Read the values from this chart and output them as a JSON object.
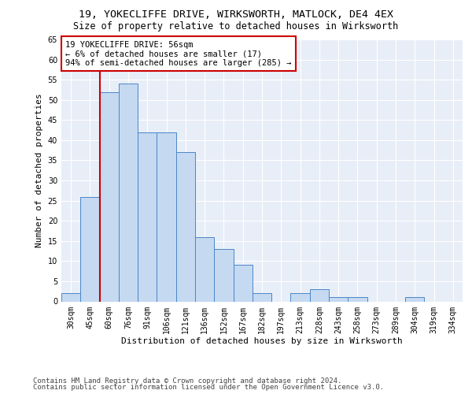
{
  "title_line1": "19, YOKECLIFFE DRIVE, WIRKSWORTH, MATLOCK, DE4 4EX",
  "title_line2": "Size of property relative to detached houses in Wirksworth",
  "xlabel": "Distribution of detached houses by size in Wirksworth",
  "ylabel": "Number of detached properties",
  "categories": [
    "30sqm",
    "45sqm",
    "60sqm",
    "76sqm",
    "91sqm",
    "106sqm",
    "121sqm",
    "136sqm",
    "152sqm",
    "167sqm",
    "182sqm",
    "197sqm",
    "213sqm",
    "228sqm",
    "243sqm",
    "258sqm",
    "273sqm",
    "289sqm",
    "304sqm",
    "319sqm",
    "334sqm"
  ],
  "values": [
    2,
    26,
    52,
    54,
    42,
    42,
    37,
    16,
    13,
    9,
    2,
    0,
    2,
    3,
    1,
    1,
    0,
    0,
    1,
    0,
    0
  ],
  "bar_color": "#c5d9f1",
  "bar_edge_color": "#4a86c8",
  "vline_x": 1.5,
  "vline_color": "#cc0000",
  "annotation_text": "19 YOKECLIFFE DRIVE: 56sqm\n← 6% of detached houses are smaller (17)\n94% of semi-detached houses are larger (285) →",
  "annotation_box_color": "#ffffff",
  "annotation_box_edge_color": "#cc0000",
  "ylim": [
    0,
    65
  ],
  "yticks": [
    0,
    5,
    10,
    15,
    20,
    25,
    30,
    35,
    40,
    45,
    50,
    55,
    60,
    65
  ],
  "background_color": "#e8eef7",
  "footer_line1": "Contains HM Land Registry data © Crown copyright and database right 2024.",
  "footer_line2": "Contains public sector information licensed under the Open Government Licence v3.0.",
  "title_fontsize": 9.5,
  "subtitle_fontsize": 8.5,
  "axis_label_fontsize": 8,
  "tick_fontsize": 7,
  "annotation_fontsize": 7.5,
  "footer_fontsize": 6.5
}
